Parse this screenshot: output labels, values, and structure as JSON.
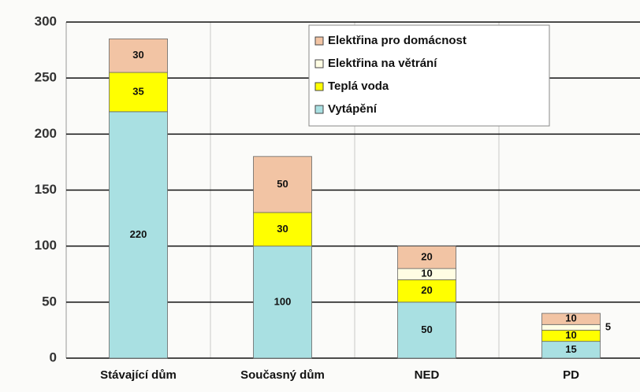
{
  "chart_data": {
    "type": "stacked-bar",
    "categories": [
      "Stávající dům",
      "Současný dům",
      "NED",
      "PD"
    ],
    "series": [
      {
        "name": "Vytápění",
        "color": "#a9e0e2",
        "values": [
          220,
          100,
          50,
          15
        ]
      },
      {
        "name": "Teplá voda",
        "color": "#ffff00",
        "values": [
          35,
          30,
          20,
          10
        ]
      },
      {
        "name": "Elektřina na větrání",
        "color": "#fffde3",
        "values": [
          null,
          null,
          10,
          5
        ]
      },
      {
        "name": "Elektřina pro domácnost",
        "color": "#f2c4a4",
        "values": [
          30,
          50,
          20,
          10
        ]
      }
    ],
    "ylim": [
      0,
      300
    ],
    "yticks": [
      0,
      50,
      100,
      150,
      200,
      250,
      300
    ],
    "grid": true,
    "legend": "top-right"
  }
}
